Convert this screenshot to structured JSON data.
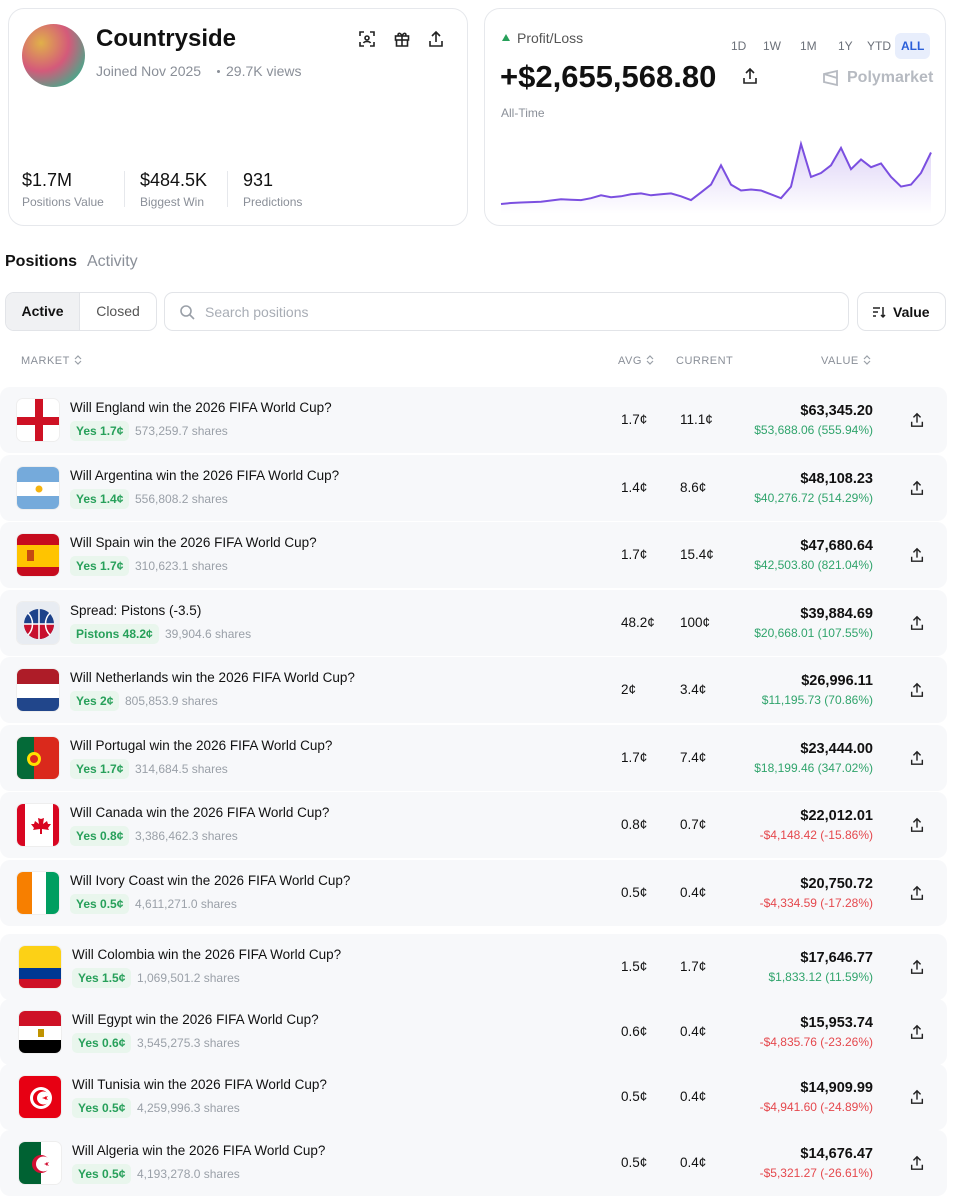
{
  "profile": {
    "name": "Countryside",
    "joined": "Joined Nov 2025",
    "views": "29.7K views",
    "stats": [
      {
        "value": "$1.7M",
        "label": "Positions Value"
      },
      {
        "value": "$484.5K",
        "label": "Biggest Win"
      },
      {
        "value": "931",
        "label": "Predictions"
      }
    ]
  },
  "pnl": {
    "label": "Profit/Loss",
    "ranges": [
      "1D",
      "1W",
      "1M",
      "1Y",
      "YTD",
      "ALL"
    ],
    "active_range_index": 5,
    "value": "+$2,655,568.80",
    "brand": "Polymarket",
    "period": "All-Time",
    "chart": {
      "type": "line",
      "color": "#7b4fe0",
      "values": [
        0,
        0.05,
        0.08,
        0.1,
        0.12,
        0.18,
        0.25,
        0.22,
        0.2,
        0.3,
        0.45,
        0.35,
        0.4,
        0.5,
        0.55,
        0.45,
        0.5,
        0.55,
        0.4,
        0.2,
        0.6,
        1.0,
        2.0,
        1.0,
        0.7,
        0.75,
        0.7,
        0.5,
        0.3,
        0.9,
        3.1,
        1.4,
        1.6,
        2.0,
        2.9,
        1.8,
        2.3,
        1.9,
        2.1,
        1.4,
        0.9,
        1.0,
        1.6,
        2.66
      ]
    }
  },
  "tabs": {
    "items": [
      "Positions",
      "Activity"
    ],
    "active_index": 0
  },
  "filter": {
    "items": [
      "Active",
      "Closed"
    ],
    "active_index": 0
  },
  "search": {
    "placeholder": "Search positions"
  },
  "sort": {
    "label": "Value"
  },
  "table": {
    "headers": [
      "MARKET",
      "AVG",
      "CURRENT",
      "VALUE"
    ],
    "rows": [
      {
        "title": "Will England win the 2026 FIFA World Cup?",
        "outcome": "Yes 1.7¢",
        "shares": "573,259.7 shares",
        "avg": "1.7¢",
        "current": "11.1¢",
        "value": "$63,345.20",
        "pnl": "$53,688.06 (555.94%)"
      },
      {
        "title": "Will Argentina win the 2026 FIFA World Cup?",
        "outcome": "Yes 1.4¢",
        "shares": "556,808.2 shares",
        "avg": "1.4¢",
        "current": "8.6¢",
        "value": "$48,108.23",
        "pnl": "$40,276.72 (514.29%)"
      },
      {
        "title": "Will Spain win the 2026 FIFA World Cup?",
        "outcome": "Yes 1.7¢",
        "shares": "310,623.1 shares",
        "avg": "1.7¢",
        "current": "15.4¢",
        "value": "$47,680.64",
        "pnl": "$42,503.80 (821.04%)"
      },
      {
        "title": "Spread: Pistons (-3.5)",
        "outcome": "Pistons 48.2¢",
        "shares": "39,904.6 shares",
        "avg": "48.2¢",
        "current": "100¢",
        "value": "$39,884.69",
        "pnl": "$20,668.01 (107.55%)"
      },
      {
        "title": "Will Netherlands win the 2026 FIFA World Cup?",
        "outcome": "Yes 2¢",
        "shares": "805,853.9 shares",
        "avg": "2¢",
        "current": "3.4¢",
        "value": "$26,996.11",
        "pnl": "$11,195.73 (70.86%)"
      },
      {
        "title": "Will Portugal win the 2026 FIFA World Cup?",
        "outcome": "Yes 1.7¢",
        "shares": "314,684.5 shares",
        "avg": "1.7¢",
        "current": "7.4¢",
        "value": "$23,444.00",
        "pnl": "$18,199.46 (347.02%)"
      },
      {
        "title": "Will Canada win the 2026 FIFA World Cup?",
        "outcome": "Yes 0.8¢",
        "shares": "3,386,462.3 shares",
        "avg": "0.8¢",
        "current": "0.7¢",
        "value": "$22,012.01",
        "pnl": "-$4,148.42 (-15.86%)"
      },
      {
        "title": "Will Ivory Coast win the 2026 FIFA World Cup?",
        "outcome": "Yes 0.5¢",
        "shares": "4,611,271.0 shares",
        "avg": "0.5¢",
        "current": "0.4¢",
        "value": "$20,750.72",
        "pnl": "-$4,334.59 (-17.28%)"
      },
      {
        "title": "Will Colombia win the 2026 FIFA World Cup?",
        "outcome": "Yes 1.5¢",
        "shares": "1,069,501.2 shares",
        "avg": "1.5¢",
        "current": "1.7¢",
        "value": "$17,646.77",
        "pnl": "$1,833.12 (11.59%)"
      },
      {
        "title": "Will Egypt win the 2026 FIFA World Cup?",
        "outcome": "Yes 0.6¢",
        "shares": "3,545,275.3 shares",
        "avg": "0.6¢",
        "current": "0.4¢",
        "value": "$15,953.74",
        "pnl": "-$4,835.76 (-23.26%)"
      },
      {
        "title": "Will Tunisia win the 2026 FIFA World Cup?",
        "outcome": "Yes 0.5¢",
        "shares": "4,259,996.3 shares",
        "avg": "0.5¢",
        "current": "0.4¢",
        "value": "$14,909.99",
        "pnl": "-$4,941.60 (-24.89%)"
      },
      {
        "title": "Will Algeria win the 2026 FIFA World Cup?",
        "outcome": "Yes 0.5¢",
        "shares": "4,193,278.0 shares",
        "avg": "0.5¢",
        "current": "0.4¢",
        "value": "$14,676.47",
        "pnl": "-$5,321.27 (-26.61%)"
      }
    ]
  }
}
